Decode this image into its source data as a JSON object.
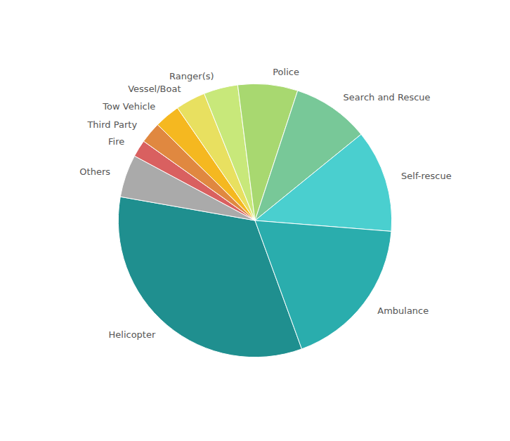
{
  "chart_data": {
    "type": "pie",
    "categories": [
      "Helicopter",
      "Others",
      "Fire",
      "Third Party",
      "Tow Vehicle",
      "Vessel/Boat",
      "Ranger(s)",
      "Police",
      "Search and Rescue",
      "Self-rescue",
      "Ambulance"
    ],
    "values": [
      33,
      5,
      2,
      2.5,
      3,
      3.5,
      4,
      7,
      9,
      12,
      18
    ],
    "colors": [
      "#1f8f8f",
      "#aaaaaa",
      "#d96060",
      "#e08840",
      "#f5b820",
      "#e8e060",
      "#c8e87a",
      "#a8d870",
      "#78c898",
      "#4acfcf",
      "#2aadad"
    ]
  }
}
